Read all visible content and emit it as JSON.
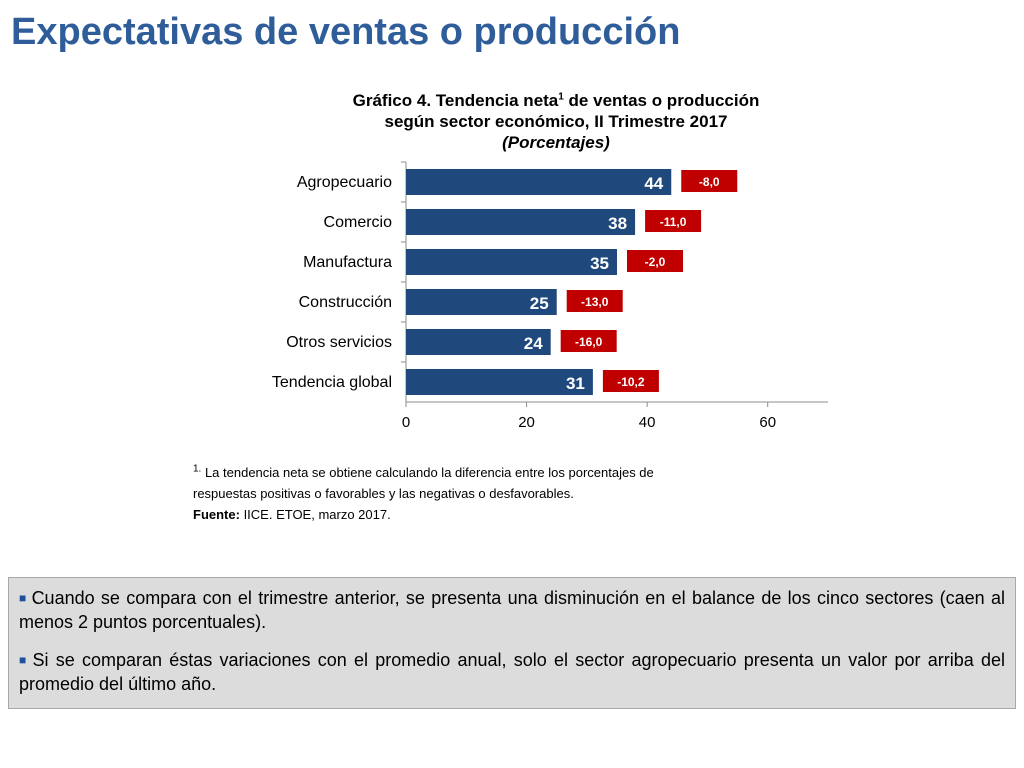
{
  "page": {
    "title": "Expectativas de ventas o producción"
  },
  "chart_title": {
    "line1_a": "Gráfico 4. Tendencia neta",
    "line1_sup": "1",
    "line1_b": " de ventas o producción",
    "line2": "según sector económico, II Trimestre 2017",
    "line3": "(Porcentajes)"
  },
  "chart_data": {
    "type": "bar",
    "orientation": "horizontal",
    "categories": [
      "Agropecuario",
      "Comercio",
      "Manufactura",
      "Construcción",
      "Otros servicios",
      "Tendencia global"
    ],
    "values": [
      44,
      38,
      35,
      25,
      24,
      31
    ],
    "value_labels": [
      "44",
      "38",
      "35",
      "25",
      "24",
      "31"
    ],
    "change_labels": [
      "-8,0",
      "-11,0",
      "-2,0",
      "-13,0",
      "-16,0",
      "-10,2"
    ],
    "xlim": [
      0,
      70
    ],
    "x_ticks": [
      "0",
      "20",
      "40",
      "60"
    ],
    "x_tick_values": [
      0,
      20,
      40,
      60
    ],
    "bar_color": "#1f497d",
    "change_color": "#c00000",
    "grid": false
  },
  "notes": {
    "footnote_marker": "1.",
    "footnote_text": " La tendencia neta se obtiene calculando la diferencia entre los porcentajes de",
    "footnote_text2": "respuestas positivas o favorables y las negativas o desfavorables.",
    "source_label": "Fuente:",
    "source_text": " IICE. ETOE, marzo 2017."
  },
  "summary": {
    "bullet_icon": "square-bullet-icon",
    "items": [
      "Cuando se compara con el trimestre anterior, se presenta una disminución en el balance de los cinco sectores (caen al menos 2 puntos porcentuales).",
      "Si se comparan éstas variaciones con el promedio anual, solo el sector agropecuario presenta un valor por arriba del promedio del último año."
    ]
  }
}
